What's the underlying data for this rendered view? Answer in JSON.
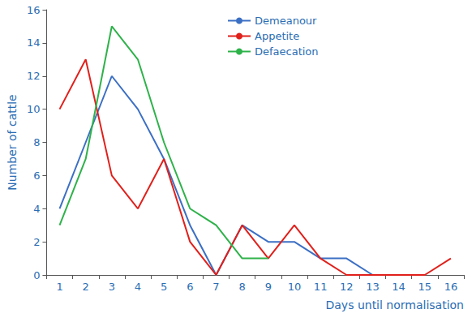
{
  "chart_data": {
    "type": "line",
    "xlabel": "Days until normalisation",
    "ylabel": "Number of cattle",
    "categories": [
      "1",
      "2",
      "3",
      "4",
      "5",
      "6",
      "7",
      "8",
      "9",
      "10",
      "11",
      "12",
      "13",
      "14",
      "15",
      "16"
    ],
    "series": [
      {
        "name": "Demeanour",
        "color": "#3b6fc4",
        "values": [
          4,
          8,
          12,
          10,
          7,
          3,
          0,
          3,
          2,
          2,
          1,
          1,
          0,
          null,
          null,
          null
        ]
      },
      {
        "name": "Appetite",
        "color": "#e0201b",
        "values": [
          10,
          13,
          6,
          4,
          7,
          2,
          0,
          3,
          1,
          3,
          1,
          0,
          0,
          0,
          0,
          1
        ]
      },
      {
        "name": "Defaecation",
        "color": "#2eb24a",
        "values": [
          3,
          7,
          15,
          13,
          8,
          4,
          3,
          1,
          1,
          null,
          null,
          null,
          null,
          null,
          null,
          null
        ]
      }
    ],
    "ylim": [
      0,
      16
    ],
    "yticks": [
      0,
      2,
      4,
      6,
      8,
      10,
      12,
      14,
      16
    ],
    "grid": false,
    "legend": "top"
  }
}
